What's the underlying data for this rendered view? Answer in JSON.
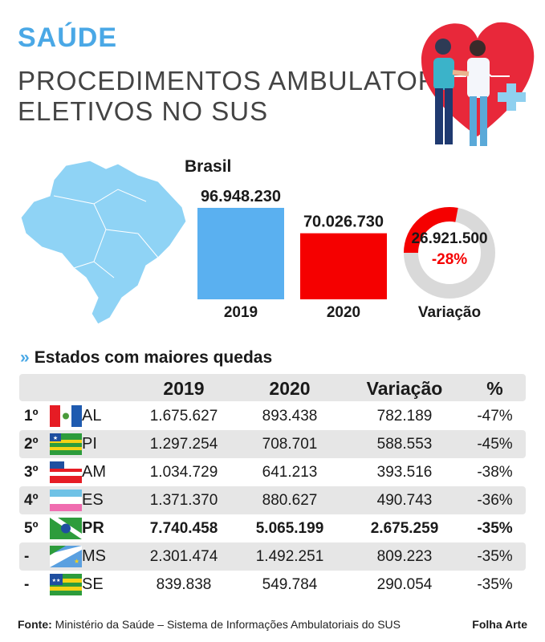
{
  "header": {
    "section": "SAÚDE",
    "title_line1": "PROCEDIMENTOS AMBULATORIAIS",
    "title_line2": "ELETIVOS NO SUS"
  },
  "colors": {
    "accent": "#4aa8e6",
    "bar2019": "#5ab0f0",
    "bar2020": "#f50000",
    "donut_bg": "#d9d9d9"
  },
  "chart_data": [
    {
      "type": "bar",
      "title": "Brasil",
      "categories": [
        "2019",
        "2020"
      ],
      "values": [
        96948230,
        70026730
      ],
      "value_labels": [
        "96.948.230",
        "70.026.730"
      ]
    },
    {
      "type": "pie",
      "label": "Variação",
      "value_label": "26.921.500",
      "percent_label": "-28%",
      "fraction": 0.28
    },
    {
      "type": "table",
      "title": "Estados com maiores quedas",
      "columns": [
        "2019",
        "2020",
        "Variação",
        "%"
      ],
      "rows": [
        {
          "rank": "1º",
          "uf": "AL",
          "y2019": "1.675.627",
          "y2020": "893.438",
          "var": "782.189",
          "pct": "-47%"
        },
        {
          "rank": "2º",
          "uf": "PI",
          "y2019": "1.297.254",
          "y2020": "708.701",
          "var": "588.553",
          "pct": "-45%"
        },
        {
          "rank": "3º",
          "uf": "AM",
          "y2019": "1.034.729",
          "y2020": "641.213",
          "var": "393.516",
          "pct": "-38%"
        },
        {
          "rank": "4º",
          "uf": "ES",
          "y2019": "1.371.370",
          "y2020": "880.627",
          "var": "490.743",
          "pct": "-36%"
        },
        {
          "rank": "5º",
          "uf": "PR",
          "y2019": "7.740.458",
          "y2020": "5.065.199",
          "var": "2.675.259",
          "pct": "-35%"
        },
        {
          "rank": "-",
          "uf": "MS",
          "y2019": "2.301.474",
          "y2020": "1.492.251",
          "var": "809.223",
          "pct": "-35%"
        },
        {
          "rank": "-",
          "uf": "SE",
          "y2019": "839.838",
          "y2020": "549.784",
          "var": "290.054",
          "pct": "-35%"
        }
      ]
    }
  ],
  "footer": {
    "source_label": "Fonte:",
    "source_text": " Ministério da Saúde – Sistema de Informações Ambulatoriais do SUS",
    "credit": "Folha Arte"
  }
}
